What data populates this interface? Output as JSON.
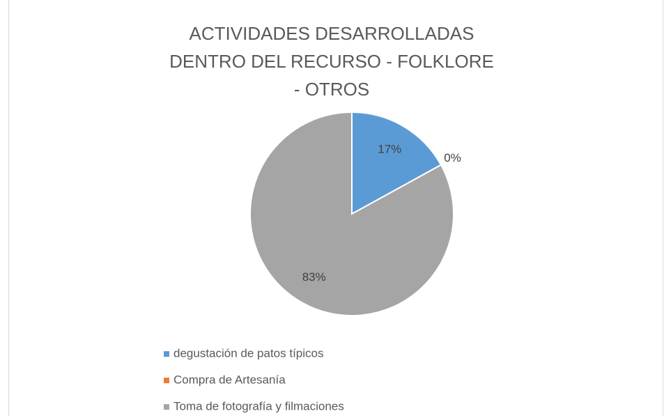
{
  "chart_data": {
    "type": "pie",
    "title": "ACTIVIDADES DESARROLLADAS DENTRO DEL RECURSO - FOLKLORE - OTROS",
    "categories": [
      "degustación de patos típicos",
      "Compra de Artesanía",
      "Toma de fotografía y filmaciones"
    ],
    "values": [
      17,
      0,
      83
    ],
    "value_labels": [
      "17%",
      "0%",
      "83%"
    ],
    "colors": [
      "#5b9bd5",
      "#ed7d31",
      "#a5a5a5"
    ],
    "legend": "bottom"
  }
}
